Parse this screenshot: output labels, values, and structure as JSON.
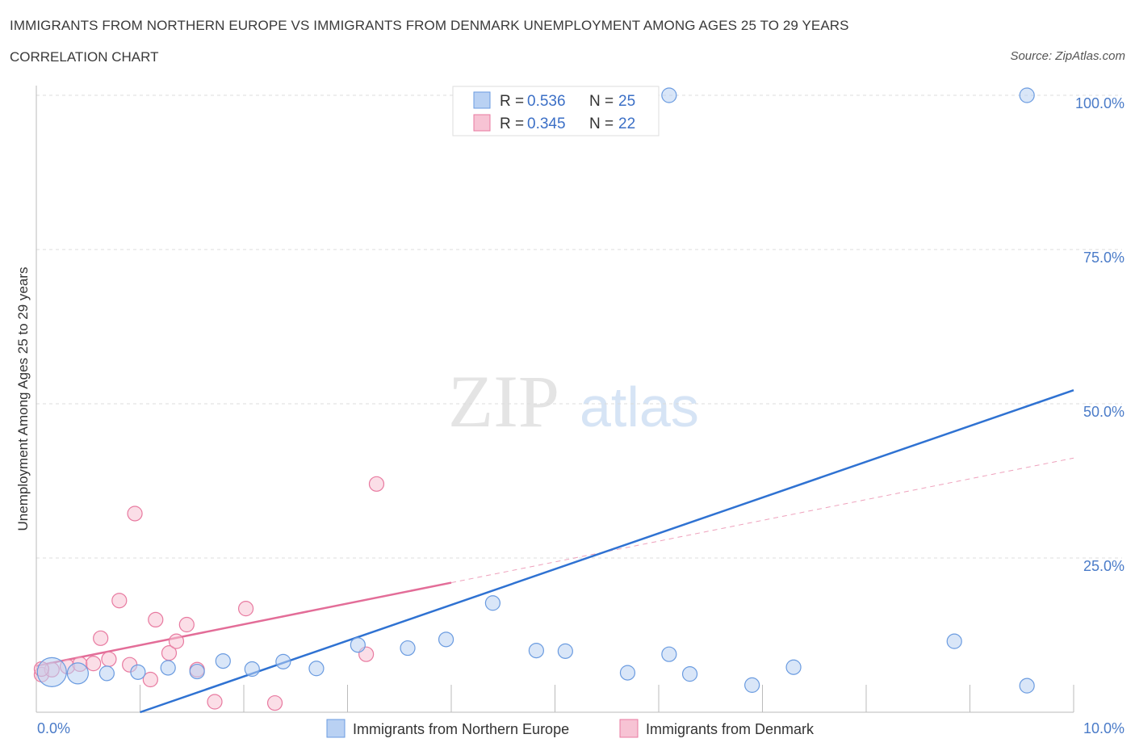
{
  "title": "IMMIGRANTS FROM NORTHERN EUROPE VS IMMIGRANTS FROM DENMARK UNEMPLOYMENT AMONG AGES 25 TO 29 YEARS",
  "subtitle": "CORRELATION CHART",
  "source": "Source: ZipAtlas.com",
  "watermark": {
    "zip": "ZIP",
    "atlas": "atlas"
  },
  "chart_data": {
    "type": "scatter",
    "title": "IMMIGRANTS FROM NORTHERN EUROPE VS IMMIGRANTS FROM DENMARK UNEMPLOYMENT AMONG AGES 25 TO 29 YEARS",
    "xlabel": "",
    "ylabel": "Unemployment Among Ages 25 to 29 years",
    "xlim": [
      0,
      10
    ],
    "ylim": [
      0,
      100
    ],
    "x_tick_labels": [
      "0.0%",
      "10.0%"
    ],
    "y_ticks": [
      25,
      50,
      75,
      100
    ],
    "y_tick_labels": [
      "25.0%",
      "50.0%",
      "75.0%",
      "100.0%"
    ],
    "grid": true,
    "legend_position": "top-center",
    "series": [
      {
        "name": "Immigrants from Northern Europe",
        "color": "#6a9be0",
        "fill": "#b9d1f3",
        "R": "0.536",
        "N": "25",
        "points": [
          {
            "x": 0.15,
            "y": 6.5,
            "size": "large"
          },
          {
            "x": 0.4,
            "y": 6.3,
            "size": "medium"
          },
          {
            "x": 0.68,
            "y": 6.3
          },
          {
            "x": 0.98,
            "y": 6.5
          },
          {
            "x": 1.27,
            "y": 7.2
          },
          {
            "x": 1.55,
            "y": 6.6
          },
          {
            "x": 1.8,
            "y": 8.3
          },
          {
            "x": 2.08,
            "y": 7.0
          },
          {
            "x": 2.38,
            "y": 8.2
          },
          {
            "x": 2.7,
            "y": 7.1
          },
          {
            "x": 3.1,
            "y": 10.9
          },
          {
            "x": 3.58,
            "y": 10.4
          },
          {
            "x": 3.95,
            "y": 11.8
          },
          {
            "x": 4.4,
            "y": 17.7
          },
          {
            "x": 4.82,
            "y": 10.0
          },
          {
            "x": 5.1,
            "y": 9.9
          },
          {
            "x": 5.7,
            "y": 6.4
          },
          {
            "x": 6.1,
            "y": 9.4
          },
          {
            "x": 6.3,
            "y": 6.2
          },
          {
            "x": 6.9,
            "y": 4.4
          },
          {
            "x": 7.3,
            "y": 7.3
          },
          {
            "x": 6.1,
            "y": 100
          },
          {
            "x": 8.85,
            "y": 11.5
          },
          {
            "x": 9.55,
            "y": 4.3
          },
          {
            "x": 9.55,
            "y": 100
          }
        ],
        "trendline": {
          "x0": 1.0,
          "y0": 0.0,
          "x1": 10.0,
          "y1": 52.2
        }
      },
      {
        "name": "Immigrants from Denmark",
        "color": "#e87aa0",
        "fill": "#f7c3d4",
        "R": "0.345",
        "N": "22",
        "points": [
          {
            "x": 0.05,
            "y": 6.1
          },
          {
            "x": 0.15,
            "y": 6.9
          },
          {
            "x": 0.3,
            "y": 7.4
          },
          {
            "x": 0.42,
            "y": 7.8
          },
          {
            "x": 0.55,
            "y": 7.9
          },
          {
            "x": 0.62,
            "y": 12.0
          },
          {
            "x": 0.7,
            "y": 8.6
          },
          {
            "x": 0.8,
            "y": 18.1
          },
          {
            "x": 0.9,
            "y": 7.7
          },
          {
            "x": 0.95,
            "y": 32.2
          },
          {
            "x": 1.1,
            "y": 5.3
          },
          {
            "x": 1.15,
            "y": 15.0
          },
          {
            "x": 1.28,
            "y": 9.6
          },
          {
            "x": 1.35,
            "y": 11.5
          },
          {
            "x": 1.45,
            "y": 14.2
          },
          {
            "x": 1.55,
            "y": 6.9
          },
          {
            "x": 1.72,
            "y": 1.7
          },
          {
            "x": 2.02,
            "y": 16.8
          },
          {
            "x": 2.3,
            "y": 1.5
          },
          {
            "x": 3.18,
            "y": 9.4
          },
          {
            "x": 3.28,
            "y": 37.0
          },
          {
            "x": 0.05,
            "y": 7.0
          }
        ],
        "trendline": {
          "x0": 0.0,
          "y0": 7.5,
          "x1": 4.0,
          "y1": 21.0
        },
        "trendline_extension": {
          "x0": 4.0,
          "y0": 21.0,
          "x1": 10.0,
          "y1": 41.2
        }
      }
    ]
  },
  "legend": {
    "r_label": "R =",
    "n_label": "N =",
    "items": [
      {
        "r": "0.536",
        "n": "25"
      },
      {
        "r": "0.345",
        "n": "22"
      }
    ]
  },
  "bottom_legend": {
    "items": [
      "Immigrants from Northern Europe",
      "Immigrants from Denmark"
    ]
  }
}
